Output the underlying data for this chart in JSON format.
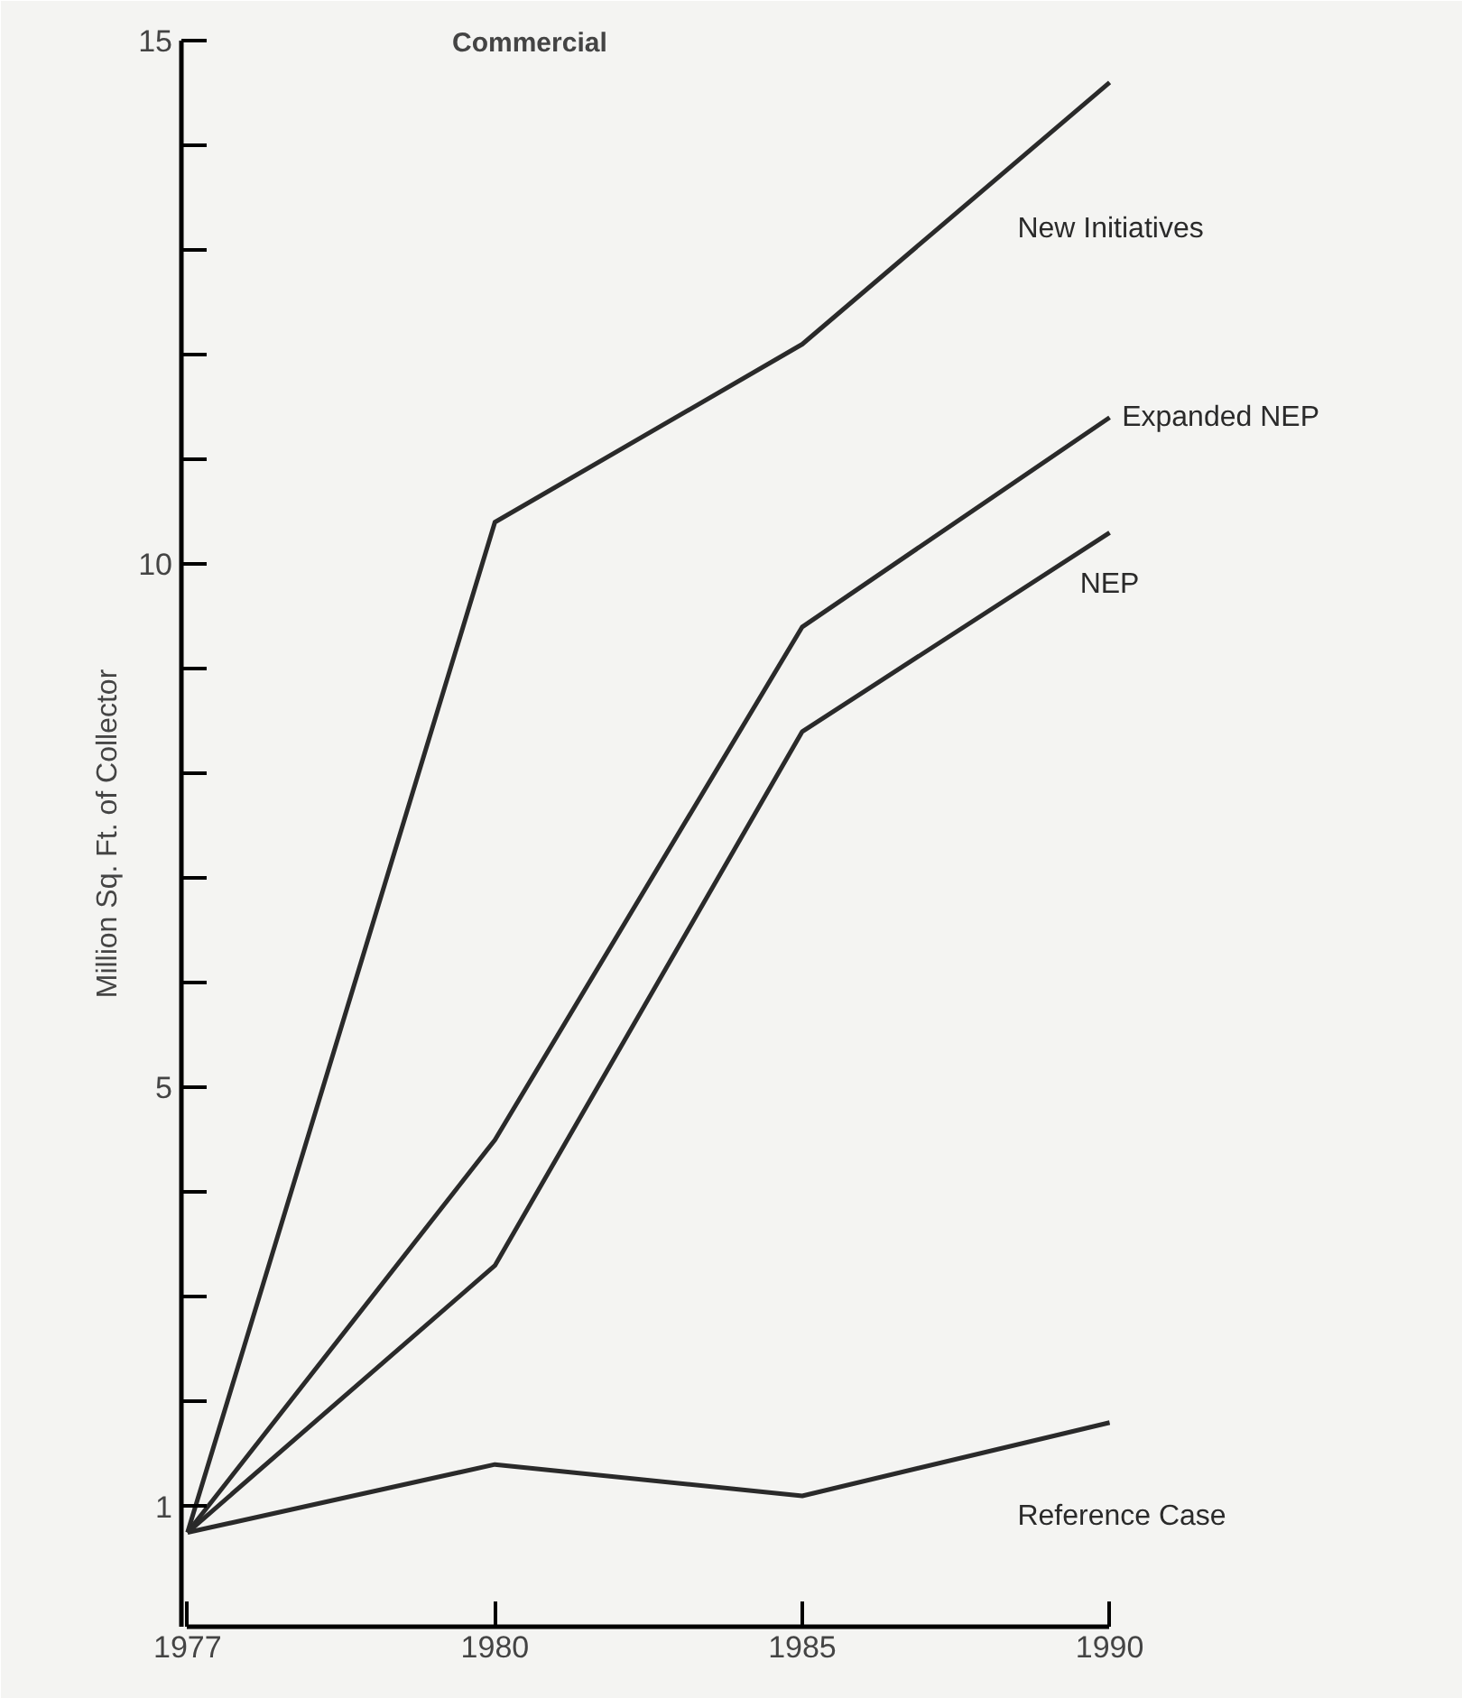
{
  "chart_data": {
    "type": "line",
    "title": "Commercial",
    "ylabel": "Million Sq. Ft. of Collector",
    "categories": [
      "1977",
      "1980",
      "1985",
      "1990"
    ],
    "series": [
      {
        "name": "New Initiatives",
        "color": "#2a2a2a",
        "values": [
          0.75,
          10.4,
          12.1,
          14.6
        ]
      },
      {
        "name": "Expanded NEP",
        "color": "#2a2a2a",
        "values": [
          0.75,
          4.5,
          9.4,
          11.4
        ]
      },
      {
        "name": "NEP",
        "color": "#2a2a2a",
        "values": [
          0.75,
          3.3,
          8.4,
          10.3
        ]
      },
      {
        "name": "Reference Case",
        "color": "#2a2a2a",
        "values": [
          0.75,
          1.4,
          1.1,
          1.8
        ]
      }
    ],
    "ylim": [
      -0.15,
      15
    ],
    "yticks": [
      {
        "value": 1,
        "label": "1"
      },
      {
        "value": 2,
        "label": null
      },
      {
        "value": 3,
        "label": null
      },
      {
        "value": 4,
        "label": null
      },
      5,
      {
        "value": 6,
        "label": null
      },
      {
        "value": 7,
        "label": null
      },
      {
        "value": 8,
        "label": null
      },
      {
        "value": 9,
        "label": null
      },
      10,
      {
        "value": 11,
        "label": null
      },
      {
        "value": 12,
        "label": null
      },
      {
        "value": 13,
        "label": null
      },
      {
        "value": 14,
        "label": null
      },
      15
    ],
    "grid": false,
    "marker": "none",
    "line_style": "solid"
  }
}
